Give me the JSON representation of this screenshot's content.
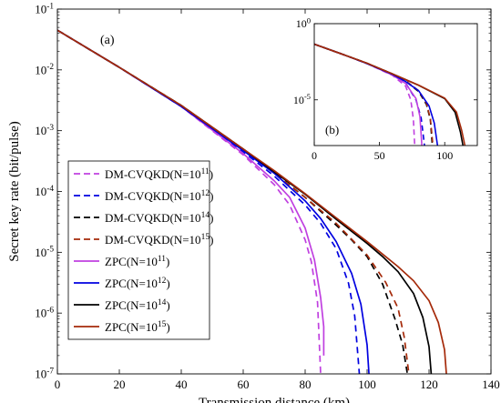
{
  "chart_data": [
    {
      "panel": "(a)",
      "type": "line",
      "xlabel": "Transmission distance (km)",
      "ylabel": "Secret key rate (bit/pulse)",
      "xlim": [
        0,
        140
      ],
      "ylim": [
        1e-07,
        0.1
      ],
      "yscale": "log",
      "xticks": [
        0,
        20,
        40,
        60,
        80,
        100,
        120,
        140
      ],
      "yticks": [
        {
          "value": 1e-07,
          "base": "10",
          "exp": "-7"
        },
        {
          "value": 1e-06,
          "base": "10",
          "exp": "-6"
        },
        {
          "value": 1e-05,
          "base": "10",
          "exp": "-5"
        },
        {
          "value": 0.0001,
          "base": "10",
          "exp": "-4"
        },
        {
          "value": 0.001,
          "base": "10",
          "exp": "-3"
        },
        {
          "value": 0.01,
          "base": "10",
          "exp": "-2"
        },
        {
          "value": 0.1,
          "base": "10",
          "exp": "-1"
        }
      ],
      "grid": false,
      "legend_position": "bottom-left",
      "series": [
        {
          "name_prefix": "DM-CVQKD(N=10",
          "name_exp": "11",
          "name_suffix": ")",
          "style": "dashed",
          "color": "#c040e0",
          "x": [
            0,
            20,
            40,
            60,
            70,
            75,
            80,
            82,
            84,
            85
          ],
          "y": [
            0.045,
            0.011,
            0.0025,
            0.0004,
            0.00013,
            6e-05,
            1.6e-05,
            7e-06,
            1.5e-06,
            1e-07
          ]
        },
        {
          "name_prefix": "DM-CVQKD(N=10",
          "name_exp": "12",
          "name_suffix": ")",
          "style": "dashed",
          "color": "#0000e0",
          "x": [
            0,
            20,
            40,
            60,
            70,
            80,
            85,
            90,
            94,
            96,
            97.5
          ],
          "y": [
            0.045,
            0.011,
            0.0025,
            0.00045,
            0.00018,
            6e-05,
            3e-05,
            1.15e-05,
            3.1e-06,
            9e-07,
            1e-07
          ]
        },
        {
          "name_prefix": "DM-CVQKD(N=10",
          "name_exp": "14",
          "name_suffix": ")",
          "style": "dashed",
          "color": "#000000",
          "x": [
            0,
            20,
            40,
            60,
            70,
            80,
            90,
            95,
            100,
            105,
            109,
            111.5,
            113
          ],
          "y": [
            0.045,
            0.011,
            0.0026,
            0.00048,
            0.0002,
            8e-05,
            2.8e-05,
            1.6e-05,
            8.5e-06,
            3e-06,
            8e-07,
            3e-07,
            1e-07
          ]
        },
        {
          "name_prefix": "DM-CVQKD(N=10",
          "name_exp": "15",
          "name_suffix": ")",
          "style": "dashed",
          "color": "#a52a0a",
          "x": [
            0,
            20,
            40,
            60,
            70,
            80,
            90,
            100,
            106,
            110,
            112,
            113.5
          ],
          "y": [
            0.045,
            0.011,
            0.0026,
            0.0005,
            0.0002,
            8e-05,
            3e-05,
            9e-06,
            3.2e-06,
            1.2e-06,
            4e-07,
            1e-07
          ]
        },
        {
          "name_prefix": "ZPC(N=10",
          "name_exp": "11",
          "name_suffix": ")",
          "style": "solid",
          "color": "#c040e0",
          "x": [
            0,
            20,
            40,
            60,
            70,
            75,
            80,
            83,
            85,
            86,
            86
          ],
          "y": [
            0.045,
            0.011,
            0.0025,
            0.00042,
            0.00015,
            8e-05,
            2.5e-05,
            7.5e-06,
            1.8e-06,
            6e-07,
            2e-07
          ]
        },
        {
          "name_prefix": "ZPC(N=10",
          "name_exp": "12",
          "name_suffix": ")",
          "style": "solid",
          "color": "#0000e0",
          "x": [
            0,
            20,
            40,
            60,
            70,
            80,
            85,
            90,
            95,
            98,
            100,
            100.6
          ],
          "y": [
            0.045,
            0.011,
            0.0025,
            0.00047,
            0.0002,
            7e-05,
            3.6e-05,
            1.5e-05,
            4.5e-06,
            1.4e-06,
            3e-07,
            1e-07
          ]
        },
        {
          "name_prefix": "ZPC(N=10",
          "name_exp": "14",
          "name_suffix": ")",
          "style": "solid",
          "color": "#000000",
          "x": [
            0,
            20,
            40,
            60,
            70,
            80,
            90,
            100,
            105,
            110,
            115,
            118,
            120,
            120.7
          ],
          "y": [
            0.045,
            0.011,
            0.0026,
            0.0005,
            0.00021,
            9e-05,
            3.5e-05,
            1.4e-05,
            8.5e-06,
            4.8e-06,
            2.1e-06,
            8.5e-07,
            2.8e-07,
            1e-07
          ]
        },
        {
          "name_prefix": "ZPC(N=10",
          "name_exp": "15",
          "name_suffix": ")",
          "style": "solid",
          "color": "#a52a0a",
          "x": [
            0,
            20,
            40,
            60,
            70,
            80,
            90,
            100,
            110,
            115,
            120,
            123,
            125,
            125.6
          ],
          "y": [
            0.045,
            0.011,
            0.0026,
            0.0005,
            0.00022,
            9.2e-05,
            3.7e-05,
            1.5e-05,
            5.8e-06,
            3.4e-06,
            1.6e-06,
            7e-07,
            2.5e-07,
            1e-07
          ]
        }
      ]
    },
    {
      "panel": "(b)",
      "type": "line",
      "xlim": [
        0,
        125
      ],
      "ylim": [
        1e-08,
        1
      ],
      "yscale": "log",
      "xticks": [
        0,
        50,
        100
      ],
      "yticks": [
        {
          "value": 1,
          "base": "10",
          "exp": "0"
        },
        {
          "value": 1e-05,
          "base": "10",
          "exp": "-5"
        }
      ],
      "grid": false,
      "series_ref": "same series as (a)",
      "series": [
        {
          "color": "#c040e0",
          "style": "dashed",
          "x": [
            0,
            20,
            40,
            60,
            70,
            74,
            76,
            77
          ],
          "y": [
            0.045,
            0.011,
            0.0025,
            0.0004,
            8e-05,
            1e-05,
            5e-07,
            1e-08
          ]
        },
        {
          "color": "#0000e0",
          "style": "dashed",
          "x": [
            0,
            20,
            40,
            60,
            70,
            78,
            82,
            84.5
          ],
          "y": [
            0.045,
            0.011,
            0.0025,
            0.00045,
            0.00013,
            1e-05,
            6e-07,
            1e-08
          ]
        },
        {
          "color": "#000000",
          "style": "dashed",
          "x": [
            0,
            20,
            40,
            60,
            70,
            80,
            86,
            89,
            90.5
          ],
          "y": [
            0.045,
            0.011,
            0.0026,
            0.00048,
            0.00017,
            3.5e-05,
            5e-06,
            5e-07,
            1e-08
          ]
        },
        {
          "color": "#a52a0a",
          "style": "dashed",
          "x": [
            0,
            20,
            40,
            60,
            70,
            80,
            86,
            89,
            91
          ],
          "y": [
            0.045,
            0.011,
            0.0026,
            0.0005,
            0.00018,
            4e-05,
            6e-06,
            6e-07,
            1e-08
          ]
        },
        {
          "color": "#c040e0",
          "style": "solid",
          "x": [
            0,
            20,
            40,
            60,
            70,
            78,
            81,
            82.5
          ],
          "y": [
            0.045,
            0.011,
            0.0025,
            0.00042,
            0.00012,
            1.2e-05,
            8e-07,
            1e-08
          ]
        },
        {
          "color": "#0000e0",
          "style": "solid",
          "x": [
            0,
            20,
            40,
            60,
            70,
            80,
            88,
            92,
            94.5
          ],
          "y": [
            0.045,
            0.011,
            0.0025,
            0.00047,
            0.00016,
            4e-05,
            4e-06,
            3e-07,
            1e-08
          ]
        },
        {
          "color": "#000000",
          "style": "solid",
          "x": [
            0,
            20,
            40,
            60,
            80,
            100,
            108,
            112,
            114
          ],
          "y": [
            0.045,
            0.011,
            0.0026,
            0.0005,
            9e-05,
            1.2e-05,
            1.5e-06,
            8e-08,
            1e-08
          ]
        },
        {
          "color": "#a52a0a",
          "style": "solid",
          "x": [
            0,
            20,
            40,
            60,
            80,
            100,
            109,
            113,
            115.5
          ],
          "y": [
            0.045,
            0.011,
            0.0026,
            0.0005,
            9.2e-05,
            1.3e-05,
            1.6e-06,
            1e-07,
            1e-08
          ]
        }
      ]
    }
  ]
}
